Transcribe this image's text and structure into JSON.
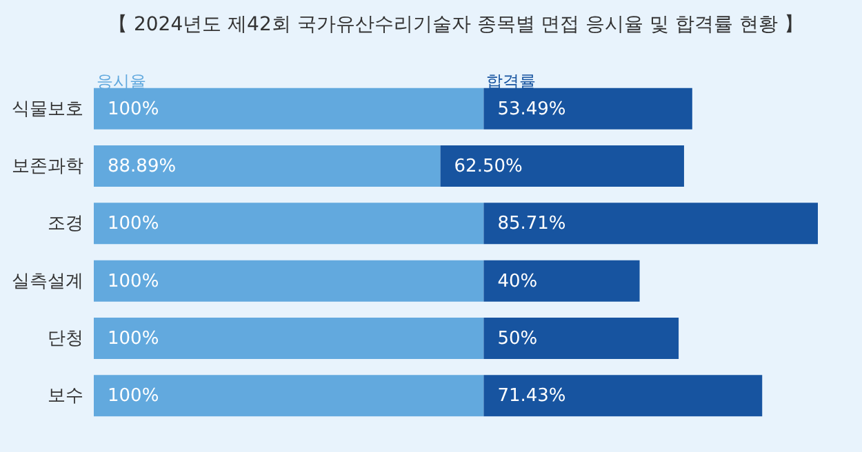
{
  "chart_data": {
    "type": "bar",
    "title": "【 2024년도 제42회 국가유산수리기술자 종목별 면접 응시율 및 합격률 현황 】",
    "orientation": "horizontal",
    "stacked": true,
    "categories": [
      "식물보호",
      "보존과학",
      "조경",
      "실측설계",
      "단청",
      "보수"
    ],
    "series": [
      {
        "name": "응시율",
        "color": "#62a9de",
        "values": [
          100,
          88.89,
          100,
          100,
          100,
          100
        ],
        "value_labels": [
          "100%",
          "88.89%",
          "100%",
          "100%",
          "100%",
          "100%"
        ]
      },
      {
        "name": "합격률",
        "color": "#1754a0",
        "values": [
          53.49,
          62.5,
          85.71,
          40,
          50,
          71.43
        ],
        "value_labels": [
          "53.49%",
          "62.50%",
          "85.71%",
          "40%",
          "50%",
          "71.43%"
        ]
      }
    ]
  }
}
